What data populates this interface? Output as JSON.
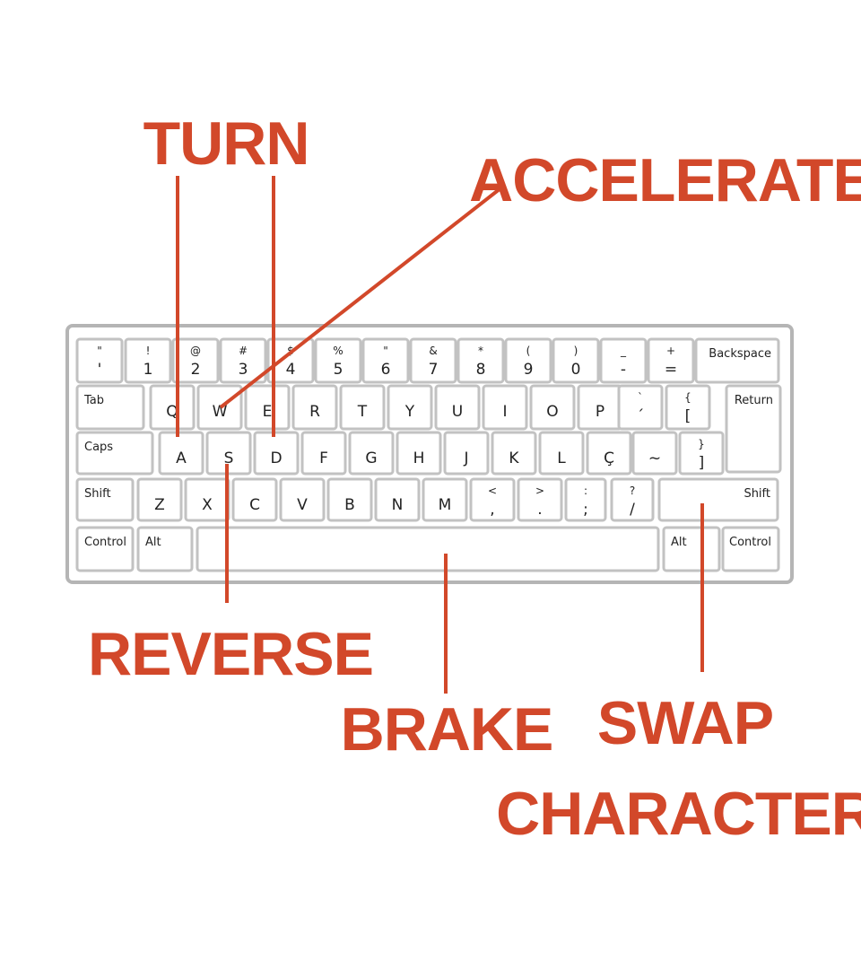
{
  "accent_color": "#d2482a",
  "keyboard": {
    "rows": [
      [
        {
          "top": "\"",
          "main": "'"
        },
        {
          "top": "!",
          "main": "1"
        },
        {
          "top": "@",
          "main": "2"
        },
        {
          "top": "#",
          "main": "3"
        },
        {
          "top": "$",
          "main": "4"
        },
        {
          "top": "%",
          "main": "5"
        },
        {
          "top": "\"",
          "main": "6"
        },
        {
          "top": "&",
          "main": "7"
        },
        {
          "top": "*",
          "main": "8"
        },
        {
          "top": "(",
          "main": "9"
        },
        {
          "top": ")",
          "main": "0"
        },
        {
          "top": "_",
          "main": "-"
        },
        {
          "top": "+",
          "main": "="
        },
        {
          "word": "Backspace"
        }
      ],
      [
        {
          "word": "Tab"
        },
        {
          "main": "Q"
        },
        {
          "main": "W"
        },
        {
          "main": "E"
        },
        {
          "main": "R"
        },
        {
          "main": "T"
        },
        {
          "main": "Y"
        },
        {
          "main": "U"
        },
        {
          "main": "I"
        },
        {
          "main": "O"
        },
        {
          "main": "P"
        },
        {
          "top": "`",
          "main": "´"
        },
        {
          "top": "{",
          "main": "["
        },
        {
          "word": "Return"
        }
      ],
      [
        {
          "word": "Caps"
        },
        {
          "main": "A"
        },
        {
          "main": "S"
        },
        {
          "main": "D"
        },
        {
          "main": "F"
        },
        {
          "main": "G"
        },
        {
          "main": "H"
        },
        {
          "main": "J"
        },
        {
          "main": "K"
        },
        {
          "main": "L"
        },
        {
          "main": "Ç"
        },
        {
          "main": "~"
        },
        {
          "top": "}",
          "main": "]"
        }
      ],
      [
        {
          "word": "Shift"
        },
        {
          "main": "Z"
        },
        {
          "main": "X"
        },
        {
          "main": "C"
        },
        {
          "main": "V"
        },
        {
          "main": "B"
        },
        {
          "main": "N"
        },
        {
          "main": "M"
        },
        {
          "top": "<",
          "main": ","
        },
        {
          "top": ">",
          "main": "."
        },
        {
          "top": ":",
          "main": ";"
        },
        {
          "top": "?",
          "main": "/"
        },
        {
          "word": "Shift"
        }
      ],
      [
        {
          "word": "Control"
        },
        {
          "word": "Alt"
        },
        {
          "word": ""
        },
        {
          "word": "Alt"
        },
        {
          "word": "Control"
        }
      ]
    ]
  },
  "callouts": {
    "turn": {
      "label": "TURN",
      "keys": [
        "A",
        "D"
      ]
    },
    "accelerate": {
      "label": "ACCELERATE",
      "keys": [
        "W"
      ]
    },
    "reverse": {
      "label": "REVERSE",
      "keys": [
        "S"
      ]
    },
    "brake": {
      "label": "BRAKE",
      "keys": [
        "Space"
      ]
    },
    "swap": {
      "line1": "SWAP",
      "line2": "CHARACTER",
      "keys": [
        "Right Shift"
      ]
    }
  }
}
